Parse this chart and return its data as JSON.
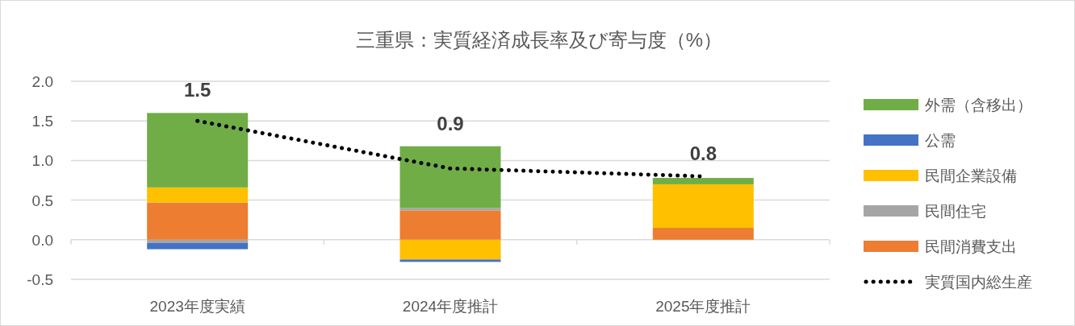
{
  "chart_data": {
    "type": "bar",
    "title": "三重県：実質経済成長率及び寄与度（%）",
    "categories": [
      "2023年度実績",
      "2024年度推計",
      "2025年度推計"
    ],
    "stacked": true,
    "series": [
      {
        "name": "民間消費支出",
        "color": "#ed7d31",
        "values": [
          0.47,
          0.37,
          0.15
        ]
      },
      {
        "name": "民間住宅",
        "color": "#a5a5a5",
        "values": [
          -0.04,
          0.03,
          0.0
        ]
      },
      {
        "name": "民間企業設備",
        "color": "#ffc000",
        "values": [
          0.19,
          -0.25,
          0.55
        ]
      },
      {
        "name": "公需",
        "color": "#4472c4",
        "values": [
          -0.08,
          -0.03,
          0.0
        ]
      },
      {
        "name": "外需（含移出）",
        "color": "#70ad47",
        "values": [
          0.94,
          0.78,
          0.08
        ]
      },
      {
        "name": "実質国内総生産",
        "type": "line",
        "color": "#000000",
        "line_style": "dotted",
        "values": [
          1.5,
          0.9,
          0.8
        ],
        "value_labels": [
          "1.5",
          "0.9",
          "0.8"
        ]
      }
    ],
    "ylim": [
      -0.5,
      2.0
    ],
    "yticks": [
      {
        "value": -0.5,
        "label": "-0.5"
      },
      {
        "value": 0,
        "label": "0.0"
      },
      {
        "value": 0.5,
        "label": "0.5"
      },
      {
        "value": 1,
        "label": "1.0"
      },
      {
        "value": 1.5,
        "label": "1.5"
      },
      {
        "value": 2,
        "label": "2.0"
      }
    ],
    "grid": "y",
    "legend": "right"
  }
}
